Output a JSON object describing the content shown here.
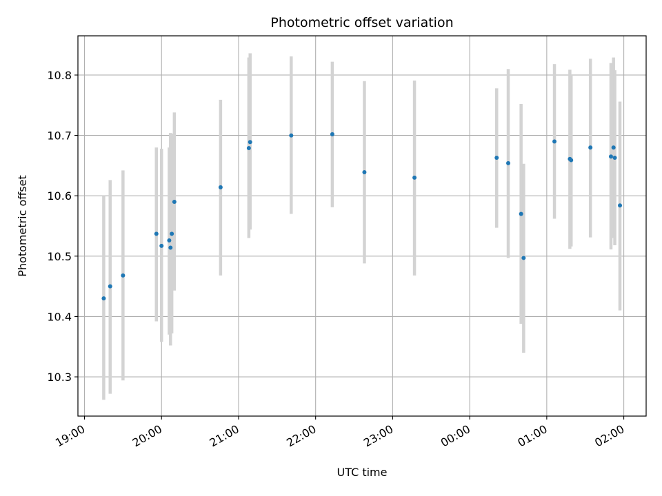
{
  "chart_data": {
    "type": "scatter",
    "title": "Photometric offset variation",
    "xlabel": "UTC time",
    "ylabel": "Photometric offset",
    "grid": true,
    "x_domain_hours": [
      18.915,
      26.29
    ],
    "ylim": [
      10.235,
      10.865
    ],
    "x_ticks": [
      {
        "label": "19:00",
        "hour": 19
      },
      {
        "label": "20:00",
        "hour": 20
      },
      {
        "label": "21:00",
        "hour": 21
      },
      {
        "label": "22:00",
        "hour": 22
      },
      {
        "label": "23:00",
        "hour": 23
      },
      {
        "label": "00:00",
        "hour": 24
      },
      {
        "label": "01:00",
        "hour": 25
      },
      {
        "label": "02:00",
        "hour": 26
      }
    ],
    "y_ticks": [
      {
        "label": "10.3",
        "value": 10.3
      },
      {
        "label": "10.4",
        "value": 10.4
      },
      {
        "label": "10.5",
        "value": 10.5
      },
      {
        "label": "10.6",
        "value": 10.6
      },
      {
        "label": "10.7",
        "value": 10.7
      },
      {
        "label": "10.8",
        "value": 10.8
      }
    ],
    "colors": {
      "point": "#1f77b4",
      "errorbar": "#d3d3d3",
      "grid": "#b0b0b0"
    },
    "points": [
      {
        "time": "19:15",
        "value": 10.43,
        "low": 10.262,
        "high": 10.6
      },
      {
        "time": "19:20",
        "value": 10.45,
        "low": 10.272,
        "high": 10.626
      },
      {
        "time": "19:30",
        "value": 10.468,
        "low": 10.294,
        "high": 10.642
      },
      {
        "time": "19:56",
        "value": 10.537,
        "low": 10.392,
        "high": 10.68
      },
      {
        "time": "20:00",
        "value": 10.517,
        "low": 10.358,
        "high": 10.678
      },
      {
        "time": "20:06",
        "value": 10.526,
        "low": 10.37,
        "high": 10.68
      },
      {
        "time": "20:07",
        "value": 10.514,
        "low": 10.352,
        "high": 10.704
      },
      {
        "time": "20:08",
        "value": 10.537,
        "low": 10.372,
        "high": 10.703
      },
      {
        "time": "20:10",
        "value": 10.59,
        "low": 10.443,
        "high": 10.738
      },
      {
        "time": "20:46",
        "value": 10.614,
        "low": 10.468,
        "high": 10.759
      },
      {
        "time": "21:08",
        "value": 10.679,
        "low": 10.53,
        "high": 10.829
      },
      {
        "time": "21:09",
        "value": 10.689,
        "low": 10.544,
        "high": 10.836
      },
      {
        "time": "21:41",
        "value": 10.7,
        "low": 10.57,
        "high": 10.831
      },
      {
        "time": "22:13",
        "value": 10.702,
        "low": 10.581,
        "high": 10.822
      },
      {
        "time": "22:38",
        "value": 10.639,
        "low": 10.488,
        "high": 10.79
      },
      {
        "time": "23:17",
        "value": 10.63,
        "low": 10.468,
        "high": 10.791
      },
      {
        "time": "00:21",
        "value": 10.663,
        "low": 10.547,
        "high": 10.778
      },
      {
        "time": "00:30",
        "value": 10.654,
        "low": 10.497,
        "high": 10.81
      },
      {
        "time": "00:40",
        "value": 10.57,
        "low": 10.388,
        "high": 10.752
      },
      {
        "time": "00:42",
        "value": 10.497,
        "low": 10.34,
        "high": 10.653
      },
      {
        "time": "01:06",
        "value": 10.69,
        "low": 10.562,
        "high": 10.818
      },
      {
        "time": "01:18",
        "value": 10.661,
        "low": 10.512,
        "high": 10.809
      },
      {
        "time": "01:19",
        "value": 10.659,
        "low": 10.516,
        "high": 10.8
      },
      {
        "time": "01:34",
        "value": 10.68,
        "low": 10.531,
        "high": 10.827
      },
      {
        "time": "01:50",
        "value": 10.665,
        "low": 10.511,
        "high": 10.82
      },
      {
        "time": "01:52",
        "value": 10.68,
        "low": 10.53,
        "high": 10.829
      },
      {
        "time": "01:53",
        "value": 10.663,
        "low": 10.518,
        "high": 10.808
      },
      {
        "time": "01:57",
        "value": 10.584,
        "low": 10.41,
        "high": 10.756
      }
    ]
  }
}
